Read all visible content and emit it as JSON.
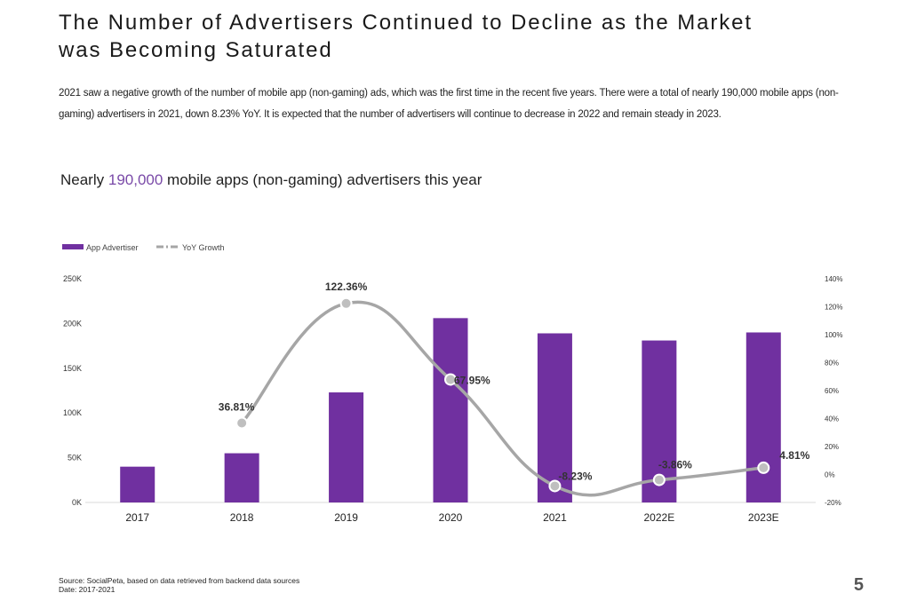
{
  "page": {
    "title_line1": "The Number of Advertisers Continued to Decline as the Market",
    "title_line2": "was Becoming Saturated",
    "description": "2021 saw a negative growth of the number of mobile app (non-gaming) ads, which was the first time in the recent five years. There were a total of nearly 190,000 mobile apps (non-gaming) advertisers in 2021, down 8.23% YoY. It is expected that the number of advertisers will continue to decrease in 2022 and remain steady in 2023.",
    "subtitle_prefix": "Nearly ",
    "subtitle_highlight": "190,000",
    "subtitle_suffix": " mobile apps (non-gaming) advertisers this year",
    "source": "Source: SocialPeta, based on data retrieved from backend data sources",
    "date": "Date: 2017-2021",
    "page_number": "5"
  },
  "colors": {
    "bar": "#7030a0",
    "line": "#a6a6a6",
    "marker": "#bfbfbf",
    "highlight": "#7a4aa8"
  },
  "chart_data": {
    "type": "bar",
    "categories": [
      "2017",
      "2018",
      "2019",
      "2020",
      "2021",
      "2022E",
      "2023E"
    ],
    "series": [
      {
        "name": "App Advertiser",
        "type": "bar",
        "axis": "left",
        "values": [
          40000,
          55000,
          123000,
          206000,
          189000,
          181000,
          190000
        ]
      },
      {
        "name": "YoY Growth",
        "type": "line",
        "axis": "right",
        "values": [
          null,
          36.81,
          122.36,
          67.95,
          -8.23,
          -3.86,
          4.81
        ],
        "labels": [
          "",
          "36.81%",
          "122.36%",
          "67.95%",
          "-8.23%",
          "-3.86%",
          "4.81%"
        ]
      }
    ],
    "y_left": {
      "min": 0,
      "max": 250000,
      "ticks": [
        {
          "v": 0,
          "l": "0K"
        },
        {
          "v": 50000,
          "l": "50K"
        },
        {
          "v": 100000,
          "l": "100K"
        },
        {
          "v": 150000,
          "l": "150K"
        },
        {
          "v": 200000,
          "l": "200K"
        },
        {
          "v": 250000,
          "l": "250K"
        }
      ]
    },
    "y_right": {
      "min": -20,
      "max": 140,
      "ticks": [
        {
          "v": -20,
          "l": "-20%"
        },
        {
          "v": 0,
          "l": "0%"
        },
        {
          "v": 20,
          "l": "20%"
        },
        {
          "v": 40,
          "l": "40%"
        },
        {
          "v": 60,
          "l": "60%"
        },
        {
          "v": 80,
          "l": "80%"
        },
        {
          "v": 100,
          "l": "100%"
        },
        {
          "v": 120,
          "l": "120%"
        },
        {
          "v": 140,
          "l": "140%"
        }
      ]
    },
    "legend": [
      {
        "label": "App Advertiser",
        "kind": "bar"
      },
      {
        "label": "YoY Growth",
        "kind": "line"
      }
    ],
    "legend_position": "top-left",
    "grid": false
  }
}
